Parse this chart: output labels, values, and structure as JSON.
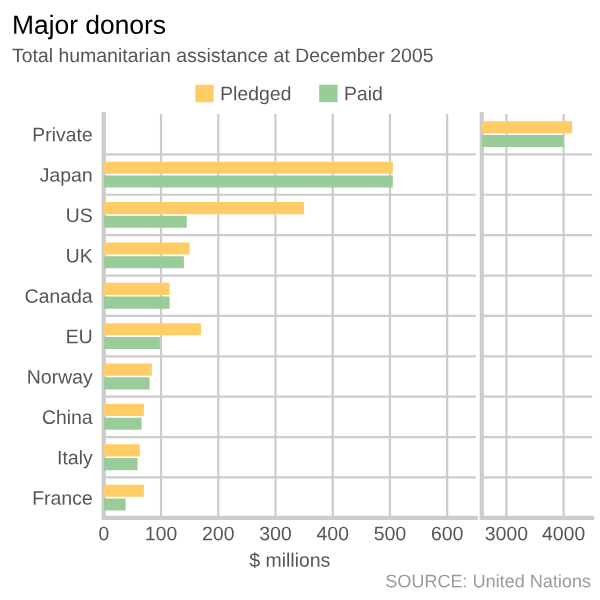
{
  "chart_data": [
    {
      "type": "bar",
      "orientation": "horizontal",
      "title": "Major donors",
      "subtitle": "Total humanitarian assistance at December 2005",
      "xlabel": "$ millions",
      "categories": [
        "Private",
        "Japan",
        "US",
        "UK",
        "Canada",
        "EU",
        "Norway",
        "China",
        "Italy",
        "France"
      ],
      "series": [
        {
          "name": "Pledged",
          "color": "#ffcc66",
          "values": [
            null,
            505,
            350,
            150,
            115,
            170,
            84,
            70,
            63,
            70
          ]
        },
        {
          "name": "Paid",
          "color": "#99cc99",
          "values": [
            null,
            505,
            145,
            140,
            115,
            98,
            80,
            66,
            59,
            38
          ]
        }
      ],
      "xlim": [
        0,
        650
      ],
      "xticks": [
        0,
        100,
        200,
        300,
        400,
        500,
        600
      ],
      "grid": "x",
      "legend": "top",
      "annotations": [
        "SOURCE: United Nations"
      ]
    },
    {
      "type": "bar",
      "orientation": "horizontal",
      "series": [
        {
          "color": "#ffcc66",
          "values": [
            4150,
            null,
            null,
            null,
            null,
            null,
            null,
            null,
            null,
            null
          ]
        },
        {
          "color": "#99cc99",
          "values": [
            4000,
            null,
            null,
            null,
            null,
            null,
            null,
            null,
            null,
            null
          ]
        }
      ],
      "xlim": [
        2570,
        4500
      ],
      "xticks": [
        3000,
        4000
      ],
      "grid": "x",
      "tick_labels": "x"
    }
  ]
}
